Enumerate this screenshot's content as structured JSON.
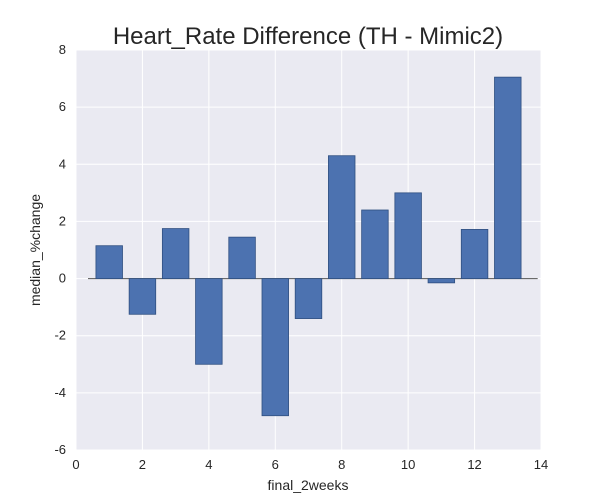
{
  "chart_data": {
    "type": "bar",
    "title": "Heart_Rate Difference (TH - Mimic2)",
    "xlabel": "final_2weeks",
    "ylabel": "median_%change",
    "x": [
      1,
      2,
      3,
      4,
      5,
      6,
      7,
      8,
      9,
      10,
      11,
      12,
      13
    ],
    "values": [
      1.15,
      -1.25,
      1.75,
      -3.0,
      1.45,
      -4.8,
      -1.4,
      4.3,
      2.4,
      3.0,
      -0.15,
      1.72,
      7.05
    ],
    "xlim": [
      0,
      14
    ],
    "ylim": [
      -6,
      8
    ],
    "xticks": [
      "0",
      "2",
      "4",
      "6",
      "8",
      "10",
      "12",
      "14"
    ],
    "yticks": [
      "-6",
      "-4",
      "-2",
      "0",
      "2",
      "4",
      "6",
      "8"
    ],
    "grid": true,
    "colors": {
      "bar": "#4c72b0",
      "background": "#eaeaf2",
      "grid": "#ffffff"
    }
  }
}
